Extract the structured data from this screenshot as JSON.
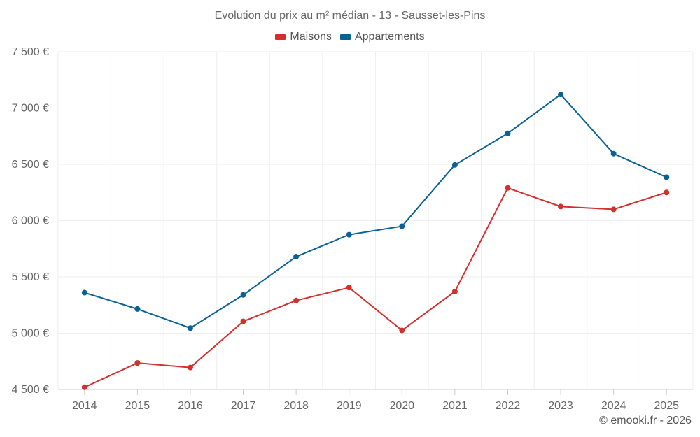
{
  "chart_data": {
    "type": "line",
    "title": "Evolution du prix au m² médian - 13 - Sausset-les-Pins",
    "xlabel": "",
    "ylabel": "",
    "categories": [
      "2014",
      "2015",
      "2016",
      "2017",
      "2018",
      "2019",
      "2020",
      "2021",
      "2022",
      "2023",
      "2024",
      "2025"
    ],
    "y_ticks": [
      "4 500 €",
      "5 000 €",
      "5 500 €",
      "6 000 €",
      "6 500 €",
      "7 000 €",
      "7 500 €"
    ],
    "ylim": [
      4500,
      7500
    ],
    "grid": true,
    "legend_position": "top-center",
    "series": [
      {
        "name": "Maisons",
        "color": "#d32f2f",
        "values": [
          4520,
          4735,
          4695,
          5105,
          5290,
          5405,
          5025,
          5370,
          6290,
          6125,
          6100,
          6250
        ]
      },
      {
        "name": "Appartements",
        "color": "#0b6196",
        "values": [
          5360,
          5215,
          5045,
          5340,
          5680,
          5875,
          5950,
          6495,
          6775,
          7120,
          6595,
          6385
        ]
      }
    ]
  },
  "footer": {
    "credit": "© emooki.fr - 2026"
  }
}
